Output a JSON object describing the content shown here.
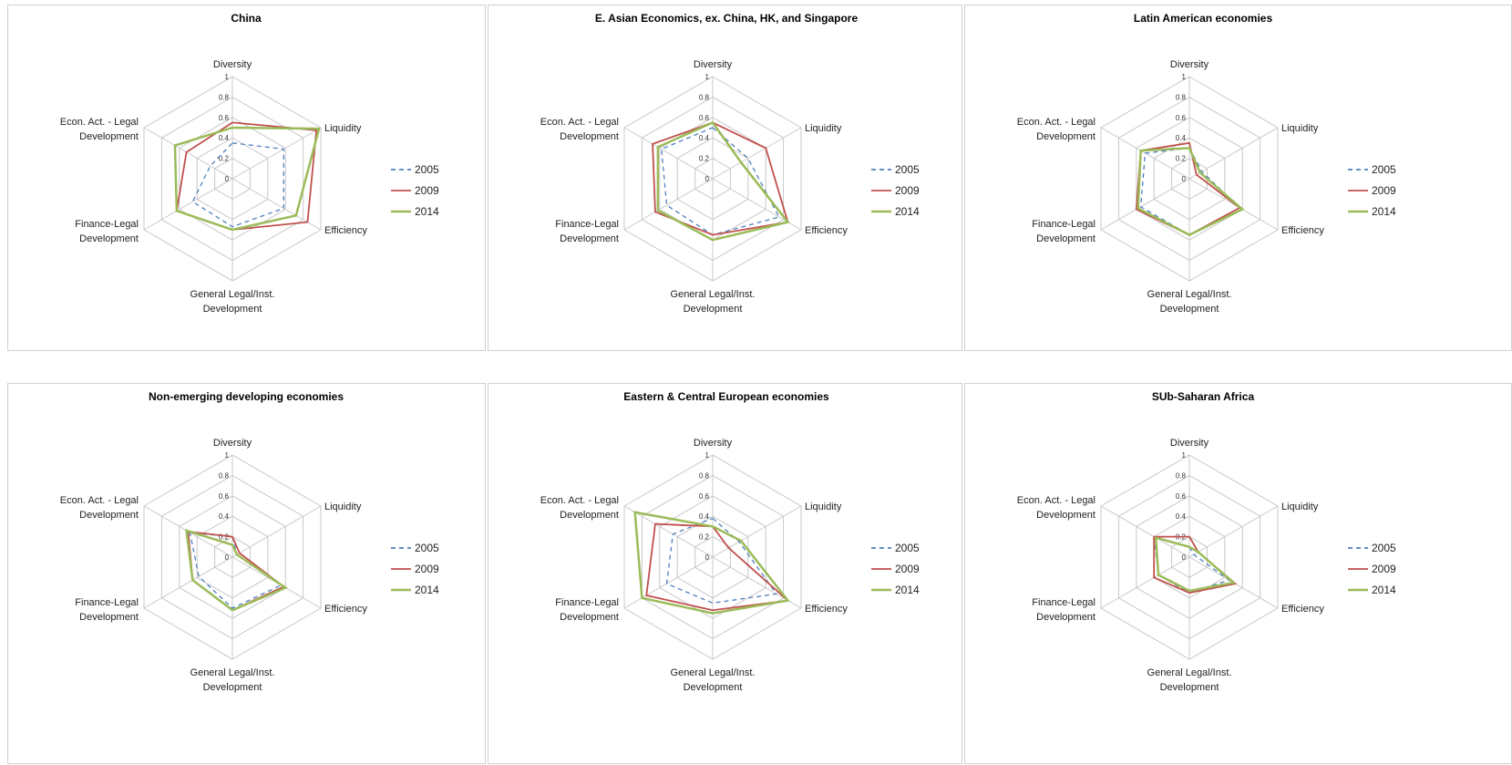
{
  "chart_data": [
    {
      "type": "radar",
      "title": "China",
      "axes": [
        "Diversity",
        "Liquidity",
        "Efficiency",
        "General Legal/Inst.|Development",
        "Finance-Legal|Development",
        "Econ. Act. - Legal|Development"
      ],
      "ticks": [
        "0",
        "0.2",
        "0.4",
        "0.6",
        "0.8",
        "1"
      ],
      "rlim": [
        0,
        1
      ],
      "series": [
        {
          "name": "2005",
          "values": [
            0.35,
            0.58,
            0.58,
            0.47,
            0.45,
            0.25
          ]
        },
        {
          "name": "2009",
          "values": [
            0.55,
            0.95,
            0.85,
            0.5,
            0.63,
            0.52
          ]
        },
        {
          "name": "2014",
          "values": [
            0.5,
            0.98,
            0.72,
            0.5,
            0.63,
            0.65
          ]
        }
      ],
      "legend_position": "right"
    },
    {
      "type": "radar",
      "title": "E. Asian Economics, ex. China, HK, and Singapore",
      "axes": [
        "Diversity",
        "Liquidity",
        "Efficiency",
        "General Legal/Inst.|Development",
        "Finance-Legal|Development",
        "Econ. Act. - Legal|Development"
      ],
      "ticks": [
        "0",
        "0.2",
        "0.4",
        "0.6",
        "0.8",
        "1"
      ],
      "rlim": [
        0,
        1
      ],
      "series": [
        {
          "name": "2005",
          "values": [
            0.5,
            0.4,
            0.75,
            0.55,
            0.52,
            0.58
          ]
        },
        {
          "name": "2009",
          "values": [
            0.55,
            0.6,
            0.85,
            0.55,
            0.65,
            0.68
          ]
        },
        {
          "name": "2014",
          "values": [
            0.55,
            0.32,
            0.85,
            0.6,
            0.62,
            0.62
          ]
        }
      ],
      "legend_position": "right"
    },
    {
      "type": "radar",
      "title": "Latin American economies",
      "axes": [
        "Diversity",
        "Liquidity",
        "Efficiency",
        "General Legal/Inst.|Development",
        "Finance-Legal|Development",
        "Econ. Act. - Legal|Development"
      ],
      "ticks": [
        "0",
        "0.2",
        "0.4",
        "0.6",
        "0.8",
        "1"
      ],
      "rlim": [
        0,
        1
      ],
      "series": [
        {
          "name": "2005",
          "values": [
            0.3,
            0.14,
            0.57,
            0.55,
            0.55,
            0.5
          ]
        },
        {
          "name": "2009",
          "values": [
            0.35,
            0.08,
            0.57,
            0.55,
            0.6,
            0.55
          ]
        },
        {
          "name": "2014",
          "values": [
            0.3,
            0.12,
            0.6,
            0.55,
            0.58,
            0.55
          ]
        }
      ],
      "legend_position": "right"
    },
    {
      "type": "radar",
      "title": "Non-emerging developing economies",
      "axes": [
        "Diversity",
        "Liquidity",
        "Efficiency",
        "General Legal/Inst.|Development",
        "Finance-Legal|Development",
        "Econ. Act. - Legal|Development"
      ],
      "ticks": [
        "0",
        "0.2",
        "0.4",
        "0.6",
        "0.8",
        "1"
      ],
      "rlim": [
        0,
        1
      ],
      "series": [
        {
          "name": "2005",
          "values": [
            0.2,
            0.05,
            0.55,
            0.5,
            0.38,
            0.48
          ]
        },
        {
          "name": "2009",
          "values": [
            0.2,
            0.08,
            0.58,
            0.52,
            0.45,
            0.5
          ]
        },
        {
          "name": "2014",
          "values": [
            0.12,
            0.05,
            0.6,
            0.52,
            0.45,
            0.52
          ]
        }
      ],
      "legend_position": "right"
    },
    {
      "type": "radar",
      "title": "Eastern & Central European economies",
      "axes": [
        "Diversity",
        "Liquidity",
        "Efficiency",
        "General Legal/Inst.|Development",
        "Finance-Legal|Development",
        "Econ. Act. - Legal|Development"
      ],
      "ticks": [
        "0",
        "0.2",
        "0.4",
        "0.6",
        "0.8",
        "1"
      ],
      "rlim": [
        0,
        1
      ],
      "series": [
        {
          "name": "2005",
          "values": [
            0.38,
            0.3,
            0.72,
            0.45,
            0.52,
            0.45
          ]
        },
        {
          "name": "2009",
          "values": [
            0.3,
            0.18,
            0.85,
            0.52,
            0.75,
            0.65
          ]
        },
        {
          "name": "2014",
          "values": [
            0.3,
            0.32,
            0.85,
            0.55,
            0.8,
            0.88
          ]
        }
      ],
      "legend_position": "right"
    },
    {
      "type": "radar",
      "title": "SUb-Saharan Africa",
      "axes": [
        "Diversity",
        "Liquidity",
        "Efficiency",
        "General Legal/Inst.|Development",
        "Finance-Legal|Development",
        "Econ. Act. - Legal|Development"
      ],
      "ticks": [
        "0",
        "0.2",
        "0.4",
        "0.6",
        "0.8",
        "1"
      ],
      "rlim": [
        0,
        1
      ],
      "series": [
        {
          "name": "2005",
          "values": [
            0.1,
            0.05,
            0.45,
            0.35,
            0.35,
            0.4
          ]
        },
        {
          "name": "2009",
          "values": [
            0.2,
            0.1,
            0.52,
            0.35,
            0.4,
            0.4
          ]
        },
        {
          "name": "2014",
          "values": [
            0.1,
            0.1,
            0.5,
            0.33,
            0.35,
            0.38
          ]
        }
      ],
      "legend_position": "right"
    }
  ],
  "colors": {
    "2005": "#4f81bd",
    "2009": "#c0504d",
    "2014": "#9bbb59",
    "grid": "#c8c8c8"
  }
}
